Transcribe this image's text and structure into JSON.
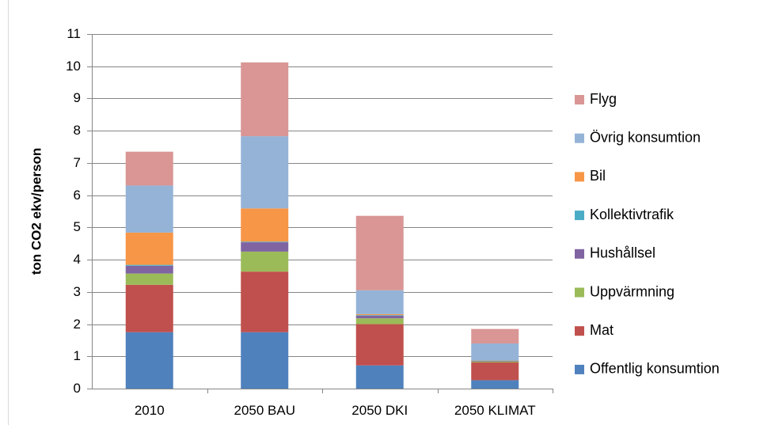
{
  "chart_data": {
    "type": "bar",
    "stacked": true,
    "ylabel": "ton CO2 ekv/person",
    "ylim": [
      0,
      11
    ],
    "yticks": [
      "0",
      "1",
      "2",
      "3",
      "4",
      "5",
      "6",
      "7",
      "8",
      "9",
      "10",
      "11"
    ],
    "categories": [
      "2010",
      "2050 BAU",
      "2050 DKI",
      "2050 KLIMAT"
    ],
    "grid": true,
    "legend_position": "right",
    "series": [
      {
        "name": "Offentlig konsumtion",
        "color": "#4f81bd",
        "values": [
          1.75,
          1.75,
          0.72,
          0.26
        ]
      },
      {
        "name": "Mat",
        "color": "#c0504d",
        "values": [
          1.47,
          1.88,
          1.28,
          0.55
        ]
      },
      {
        "name": "Uppvärmning",
        "color": "#9bbb59",
        "values": [
          0.35,
          0.62,
          0.18,
          0.03
        ]
      },
      {
        "name": "Hushållsel",
        "color": "#8064a2",
        "values": [
          0.24,
          0.29,
          0.08,
          0.02
        ]
      },
      {
        "name": "Kollektivtrafik",
        "color": "#4bacc6",
        "values": [
          0.03,
          0.02,
          0.02,
          0.01
        ]
      },
      {
        "name": "Bil",
        "color": "#f79646",
        "values": [
          1.0,
          1.03,
          0.03,
          0.01
        ]
      },
      {
        "name": "Övrig konsumtion",
        "color": "#95b3d7",
        "values": [
          1.46,
          2.24,
          0.74,
          0.52
        ]
      },
      {
        "name": "Flyg",
        "color": "#d99694",
        "values": [
          1.05,
          2.29,
          2.31,
          0.45
        ]
      }
    ]
  }
}
